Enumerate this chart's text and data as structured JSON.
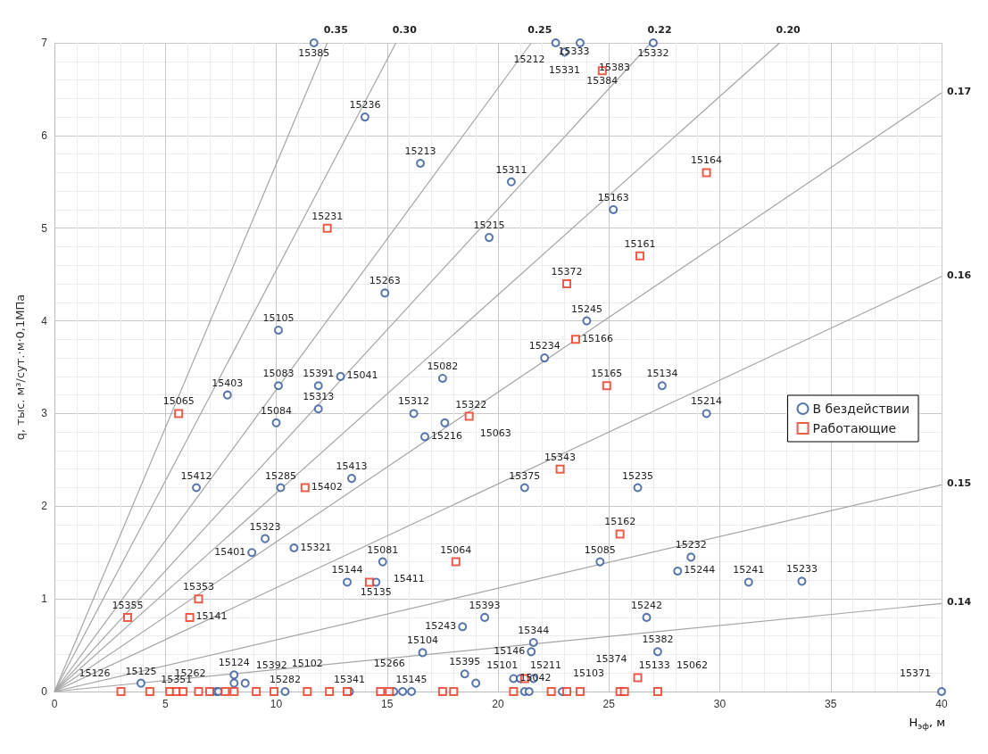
{
  "chart_data": {
    "type": "scatter",
    "xlabel": "H$_{эф}$, м",
    "ylabel": "q, тыс. м³/сут.·м·0,1МПа",
    "xlim": [
      0,
      40
    ],
    "ylim": [
      0,
      7
    ],
    "xticks": [
      0,
      5,
      10,
      15,
      20,
      25,
      30,
      35,
      40
    ],
    "yticks": [
      0,
      1,
      2,
      3,
      4,
      5,
      6,
      7
    ],
    "grid": true,
    "legend": "right",
    "series": [
      {
        "name": "В бездействии",
        "color": "#2f5597",
        "marker": "circle",
        "x": [
          11.7,
          14.0,
          16.5,
          20.6,
          19.6,
          25.2,
          22.6,
          23.0,
          23.7,
          27.0,
          14.9,
          10.1,
          24.0,
          22.1,
          7.8,
          10.1,
          11.9,
          12.9,
          11.9,
          10.0,
          17.5,
          16.2,
          17.6,
          16.7,
          27.4,
          29.4,
          6.4,
          10.2,
          13.4,
          21.2,
          26.3,
          9.5,
          8.9,
          10.8,
          14.8,
          13.2,
          14.5,
          24.6,
          28.7,
          28.1,
          31.3,
          33.7,
          19.4,
          18.4,
          26.7,
          27.2,
          21.5,
          21.6,
          16.6,
          18.5,
          19.0,
          3.9,
          8.1,
          8.1,
          8.6,
          7.3,
          7.4,
          10.4,
          13.3,
          15.3,
          15.7,
          16.1,
          20.7,
          21.0,
          21.6,
          21.2,
          21.4,
          22.9,
          40
        ],
        "values": [
          7.0,
          6.2,
          5.7,
          5.5,
          4.9,
          5.2,
          7.0,
          6.9,
          7.0,
          7.0,
          4.3,
          3.9,
          4.0,
          3.6,
          3.2,
          3.3,
          3.3,
          3.4,
          3.05,
          2.9,
          3.38,
          3.0,
          2.9,
          2.75,
          3.3,
          3.0,
          2.2,
          2.2,
          2.3,
          2.2,
          2.2,
          1.65,
          1.5,
          1.55,
          1.4,
          1.18,
          1.18,
          1.4,
          1.45,
          1.3,
          1.18,
          1.19,
          0.8,
          0.7,
          0.8,
          0.43,
          0.43,
          0.53,
          0.42,
          0.19,
          0.09,
          0.09,
          0.18,
          0.09,
          0.09,
          0,
          0,
          0,
          0,
          0,
          0,
          0,
          0.14,
          0.14,
          0.14,
          0,
          0,
          0,
          0
        ]
      },
      {
        "name": "Работающие",
        "color": "#e8321e",
        "marker": "square",
        "x": [
          24.7,
          29.4,
          12.3,
          26.4,
          23.1,
          23.5,
          24.9,
          5.6,
          18.7,
          22.8,
          11.3,
          25.5,
          18.1,
          14.2,
          6.5,
          3.3,
          6.1,
          3.0,
          4.3,
          5.2,
          5.5,
          5.8,
          6.5,
          7.0,
          7.7,
          8.1,
          9.1,
          9.9,
          11.4,
          12.4,
          13.2,
          14.7,
          15.1,
          17.5,
          18.0,
          20.7,
          22.4,
          23.1,
          23.7,
          25.5,
          25.7,
          27.2,
          21.2,
          26.3
        ],
        "values": [
          6.7,
          5.6,
          5.0,
          4.7,
          4.4,
          3.8,
          3.3,
          3.0,
          2.97,
          2.4,
          2.2,
          1.7,
          1.4,
          1.18,
          1.0,
          0.8,
          0.8,
          0,
          0,
          0,
          0,
          0,
          0,
          0,
          0,
          0,
          0,
          0,
          0,
          0,
          0,
          0,
          0,
          0,
          0,
          0,
          0,
          0,
          0,
          0,
          0,
          0,
          0.14,
          0.15
        ]
      },
      {
        "name": "0.35",
        "type": "line",
        "color": "#a6a6a6",
        "marker": "none",
        "line_style": "solid",
        "x": [
          0,
          12.3
        ],
        "values": [
          0,
          7
        ]
      },
      {
        "name": "0.30",
        "type": "line",
        "color": "#a6a6a6",
        "marker": "none",
        "line_style": "solid",
        "x": [
          0,
          15.4
        ],
        "values": [
          0,
          7
        ]
      },
      {
        "name": "0.25",
        "type": "line",
        "color": "#a6a6a6",
        "marker": "none",
        "line_style": "solid",
        "x": [
          0,
          21.5
        ],
        "values": [
          0,
          7
        ]
      },
      {
        "name": "0.22",
        "type": "line",
        "color": "#a6a6a6",
        "marker": "none",
        "line_style": "solid",
        "x": [
          0,
          26.9
        ],
        "values": [
          0,
          7
        ]
      },
      {
        "name": "0.20",
        "type": "line",
        "color": "#a6a6a6",
        "marker": "none",
        "line_style": "solid",
        "x": [
          0,
          32.7
        ],
        "values": [
          0,
          7
        ]
      },
      {
        "name": "0.17",
        "type": "line",
        "color": "#a6a6a6",
        "marker": "none",
        "line_style": "solid",
        "x": [
          0,
          40
        ],
        "values": [
          0,
          6.46
        ]
      },
      {
        "name": "0.16",
        "type": "line",
        "color": "#a6a6a6",
        "marker": "none",
        "line_style": "solid",
        "x": [
          0,
          40
        ],
        "values": [
          0,
          4.48
        ]
      },
      {
        "name": "0.15",
        "type": "line",
        "color": "#a6a6a6",
        "marker": "none",
        "line_style": "solid",
        "x": [
          0,
          40
        ],
        "values": [
          0,
          2.23
        ]
      },
      {
        "name": "0.14",
        "type": "line",
        "color": "#a6a6a6",
        "marker": "none",
        "line_style": "solid",
        "x": [
          0,
          40
        ],
        "values": [
          0,
          0.95
        ]
      }
    ],
    "annotations": [
      {
        "text": "15385",
        "x": 11.7,
        "y": 7.0
      },
      {
        "text": "15236",
        "x": 14.0,
        "y": 6.2
      },
      {
        "text": "15213",
        "x": 16.5,
        "y": 5.7
      },
      {
        "text": "15311",
        "x": 20.6,
        "y": 5.5
      },
      {
        "text": "15215",
        "x": 19.6,
        "y": 4.9
      },
      {
        "text": "15163",
        "x": 25.2,
        "y": 5.2
      },
      {
        "text": "15212",
        "x": 22.6,
        "y": 7.0
      },
      {
        "text": "15333",
        "x": 22.6,
        "y": 7.0
      },
      {
        "text": "15331",
        "x": 23.0,
        "y": 6.9
      },
      {
        "text": "15383",
        "x": 23.7,
        "y": 7.0
      },
      {
        "text": "15332",
        "x": 27.0,
        "y": 7.0
      },
      {
        "text": "15263",
        "x": 14.9,
        "y": 4.3
      },
      {
        "text": "15105",
        "x": 10.1,
        "y": 3.9
      },
      {
        "text": "15245",
        "x": 24.0,
        "y": 4.0
      },
      {
        "text": "15234",
        "x": 22.1,
        "y": 3.6
      },
      {
        "text": "15403",
        "x": 7.8,
        "y": 3.2
      },
      {
        "text": "15083",
        "x": 10.1,
        "y": 3.3
      },
      {
        "text": "15391",
        "x": 11.9,
        "y": 3.3
      },
      {
        "text": "15041",
        "x": 12.9,
        "y": 3.4
      },
      {
        "text": "15313",
        "x": 11.9,
        "y": 3.05
      },
      {
        "text": "15084",
        "x": 10.0,
        "y": 2.9
      },
      {
        "text": "15082",
        "x": 17.5,
        "y": 3.38
      },
      {
        "text": "15312",
        "x": 16.2,
        "y": 3.0
      },
      {
        "text": "15322",
        "x": 17.6,
        "y": 2.9
      },
      {
        "text": "15216",
        "x": 16.7,
        "y": 2.75
      },
      {
        "text": "15134",
        "x": 27.4,
        "y": 3.3
      },
      {
        "text": "15214",
        "x": 29.4,
        "y": 3.0
      },
      {
        "text": "15412",
        "x": 6.4,
        "y": 2.2
      },
      {
        "text": "15285",
        "x": 10.2,
        "y": 2.2
      },
      {
        "text": "15413",
        "x": 13.4,
        "y": 2.3
      },
      {
        "text": "15375",
        "x": 21.2,
        "y": 2.2
      },
      {
        "text": "15235",
        "x": 26.3,
        "y": 2.2
      },
      {
        "text": "15323",
        "x": 9.5,
        "y": 1.65
      },
      {
        "text": "15401",
        "x": 8.9,
        "y": 1.5
      },
      {
        "text": "15321",
        "x": 10.8,
        "y": 1.55
      },
      {
        "text": "15081",
        "x": 14.8,
        "y": 1.4
      },
      {
        "text": "15411",
        "x": 14.8,
        "y": 1.4
      },
      {
        "text": "15144",
        "x": 13.2,
        "y": 1.18
      },
      {
        "text": "15135",
        "x": 14.5,
        "y": 1.18
      },
      {
        "text": "15085",
        "x": 24.6,
        "y": 1.4
      },
      {
        "text": "15232",
        "x": 28.7,
        "y": 1.45
      },
      {
        "text": "15244",
        "x": 28.1,
        "y": 1.3
      },
      {
        "text": "15241",
        "x": 31.3,
        "y": 1.18
      },
      {
        "text": "15233",
        "x": 33.7,
        "y": 1.19
      },
      {
        "text": "15393",
        "x": 19.4,
        "y": 0.8
      },
      {
        "text": "15243",
        "x": 18.4,
        "y": 0.7
      },
      {
        "text": "15242",
        "x": 26.7,
        "y": 0.8
      },
      {
        "text": "15382",
        "x": 27.2,
        "y": 0.43
      },
      {
        "text": "15146",
        "x": 21.5,
        "y": 0.43
      },
      {
        "text": "15344",
        "x": 21.6,
        "y": 0.53
      },
      {
        "text": "15104",
        "x": 16.6,
        "y": 0.42
      },
      {
        "text": "15395",
        "x": 18.5,
        "y": 0.19
      },
      {
        "text": "15101",
        "x": 19.0,
        "y": 0.09
      },
      {
        "text": "15125",
        "x": 3.9,
        "y": 0.09
      },
      {
        "text": "15124",
        "x": 8.1,
        "y": 0.18
      },
      {
        "text": "15392",
        "x": 8.6,
        "y": 0.09
      },
      {
        "text": "15262",
        "x": 7.3,
        "y": 0
      },
      {
        "text": "15282",
        "x": 10.4,
        "y": 0
      },
      {
        "text": "15341",
        "x": 13.3,
        "y": 0
      },
      {
        "text": "15145",
        "x": 16.1,
        "y": 0
      },
      {
        "text": "15042",
        "x": 20.7,
        "y": 0.14
      },
      {
        "text": "15103",
        "x": 22.9,
        "y": 0
      },
      {
        "text": "15371",
        "x": 40,
        "y": 0
      },
      {
        "text": "15384",
        "x": 24.7,
        "y": 6.7
      },
      {
        "text": "15164",
        "x": 29.4,
        "y": 5.6
      },
      {
        "text": "15231",
        "x": 12.3,
        "y": 5.0
      },
      {
        "text": "15161",
        "x": 26.4,
        "y": 4.7
      },
      {
        "text": "15372",
        "x": 23.1,
        "y": 4.4
      },
      {
        "text": "15166",
        "x": 23.5,
        "y": 3.8
      },
      {
        "text": "15165",
        "x": 24.9,
        "y": 3.3
      },
      {
        "text": "15065",
        "x": 5.6,
        "y": 3.0
      },
      {
        "text": "15063",
        "x": 18.7,
        "y": 2.97
      },
      {
        "text": "15343",
        "x": 22.8,
        "y": 2.4
      },
      {
        "text": "15402",
        "x": 11.3,
        "y": 2.2
      },
      {
        "text": "15162",
        "x": 25.5,
        "y": 1.7
      },
      {
        "text": "15064",
        "x": 18.1,
        "y": 1.4
      },
      {
        "text": "15353",
        "x": 6.5,
        "y": 1.0
      },
      {
        "text": "15355",
        "x": 3.3,
        "y": 0.8
      },
      {
        "text": "15141",
        "x": 6.1,
        "y": 0.8
      },
      {
        "text": "15126",
        "x": 3.0,
        "y": 0
      },
      {
        "text": "15351",
        "x": 5.5,
        "y": 0
      },
      {
        "text": "15102",
        "x": 11.4,
        "y": 0
      },
      {
        "text": "15266",
        "x": 15.1,
        "y": 0
      },
      {
        "text": "15211",
        "x": 23.7,
        "y": 0
      },
      {
        "text": "15133",
        "x": 25.5,
        "y": 0
      },
      {
        "text": "15062",
        "x": 27.2,
        "y": 0
      },
      {
        "text": "15374",
        "x": 26.3,
        "y": 0.15
      }
    ]
  }
}
